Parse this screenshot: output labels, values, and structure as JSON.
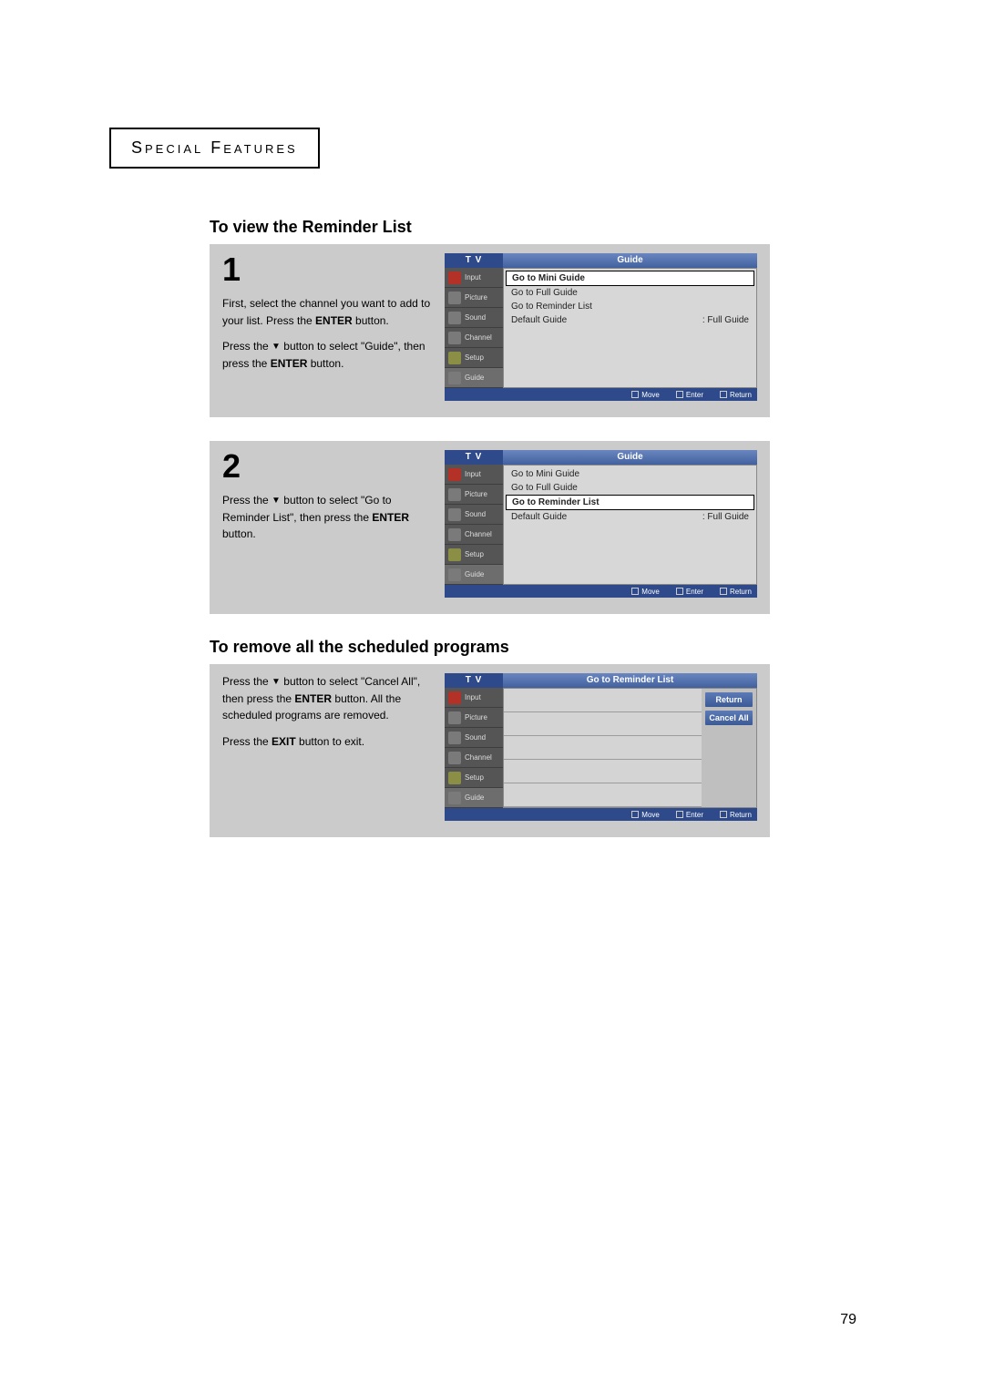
{
  "chapter_title": "Special Features",
  "section1_title": "To view the Reminder List",
  "section2_title": "To remove all the scheduled programs",
  "page_number": "79",
  "down_glyph": "▼",
  "step1": {
    "num": "1",
    "p1a": "First, select the channel you want to add to your list. Press the ",
    "p1b": "ENTER",
    "p1c": " button.",
    "p2a": "Press the ",
    "p2b": " button to select \"Guide\", then press the ",
    "p2c": "ENTER",
    "p2d": " button."
  },
  "step2": {
    "num": "2",
    "p1a": "Press the ",
    "p1b": " button to select \"Go to Reminder List\", then press the ",
    "p1c": "ENTER",
    "p1d": "  button."
  },
  "step3": {
    "p1a": "Press the ",
    "p1b": " button to select \"Cancel All\", then press the ",
    "p1c": "ENTER",
    "p1d": " button. All the scheduled programs are removed.",
    "p2a": "Press the ",
    "p2b": "EXIT",
    "p2c": " button to exit."
  },
  "tvmenu": {
    "left_title": "T V",
    "sidebar": [
      "Input",
      "Picture",
      "Sound",
      "Channel",
      "Setup",
      "Guide"
    ],
    "guide_title": "Guide",
    "options": [
      "Go to Mini Guide",
      "Go to Full Guide",
      "Go to Reminder List"
    ],
    "default_label": "Default Guide",
    "default_value": ": Full Guide",
    "footer_move": "Move",
    "footer_enter": "Enter",
    "footer_return": "Return"
  },
  "reminder_list": {
    "title": "Go to Reminder List",
    "btn_return": "Return",
    "btn_cancel": "Cancel All"
  }
}
